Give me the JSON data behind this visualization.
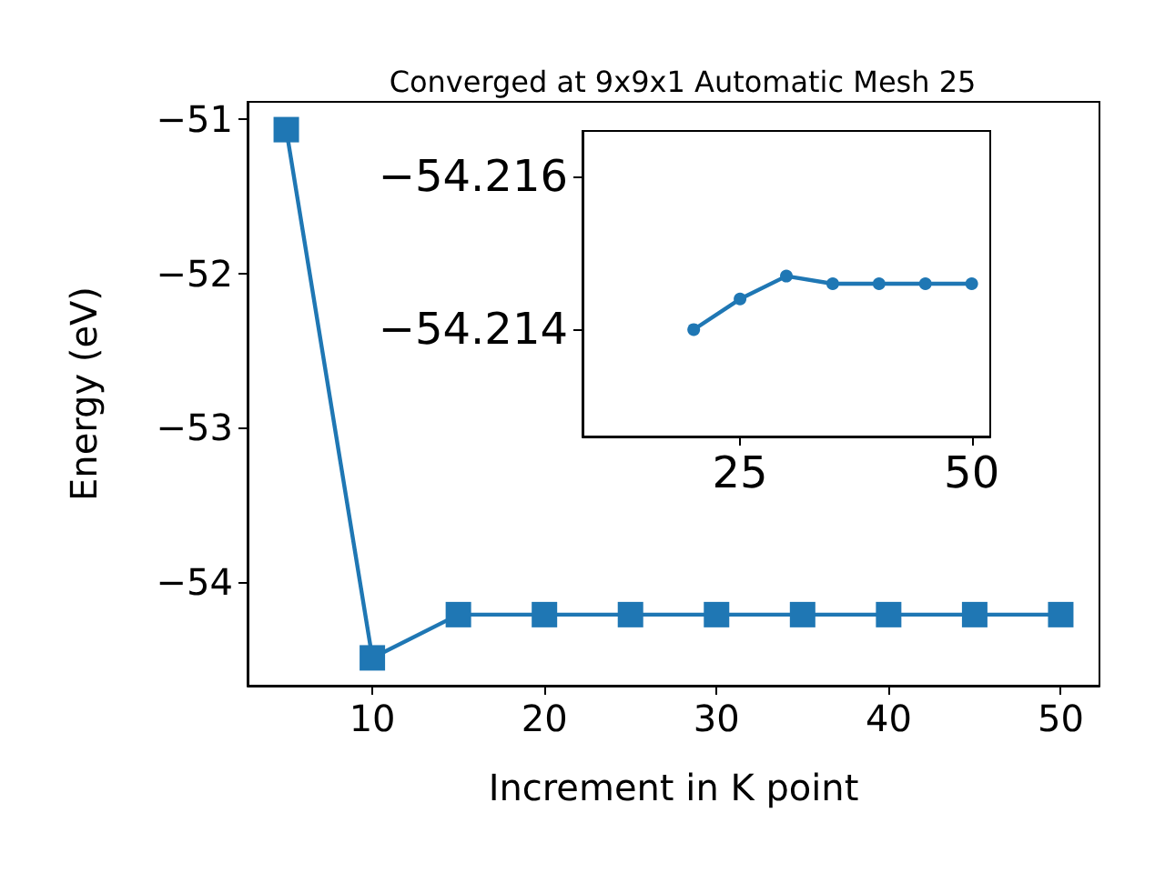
{
  "chart_data": [
    {
      "type": "line",
      "title": "Converged at 9x9x1 Automatic Mesh 25",
      "xlabel": "Increment in K point",
      "ylabel": "Energy (eV)",
      "marker": "square",
      "line_style": "solid",
      "grid": false,
      "x": [
        5,
        10,
        15,
        20,
        25,
        30,
        35,
        40,
        45,
        50
      ],
      "series": [
        {
          "color": "#1f77b4",
          "values": [
            -51.07,
            -54.49,
            -54.21,
            -54.21,
            -54.21,
            -54.21,
            -54.21,
            -54.21,
            -54.21,
            -54.21
          ]
        }
      ],
      "xlim": [
        2.75,
        52.25
      ],
      "xticks": [
        10,
        20,
        30,
        40,
        50
      ],
      "ylim": [
        -54.67,
        -50.89
      ],
      "yticks": [
        -54,
        -53,
        -52,
        -51
      ]
    },
    {
      "type": "line",
      "marker": "circle",
      "line_style": "solid",
      "grid": false,
      "x": [
        20,
        25,
        30,
        35,
        40,
        45,
        50
      ],
      "series": [
        {
          "color": "#1f77b4",
          "values": [
            -54.214,
            -54.2144,
            -54.2147,
            -54.2146,
            -54.2146,
            -54.2146,
            -54.2146
          ]
        }
      ],
      "xlim": [
        8,
        52
      ],
      "xticks": [
        25,
        50
      ],
      "ylim": [
        -54.2126,
        -54.2166
      ],
      "yticks": [
        -54.216,
        -54.214
      ]
    }
  ]
}
